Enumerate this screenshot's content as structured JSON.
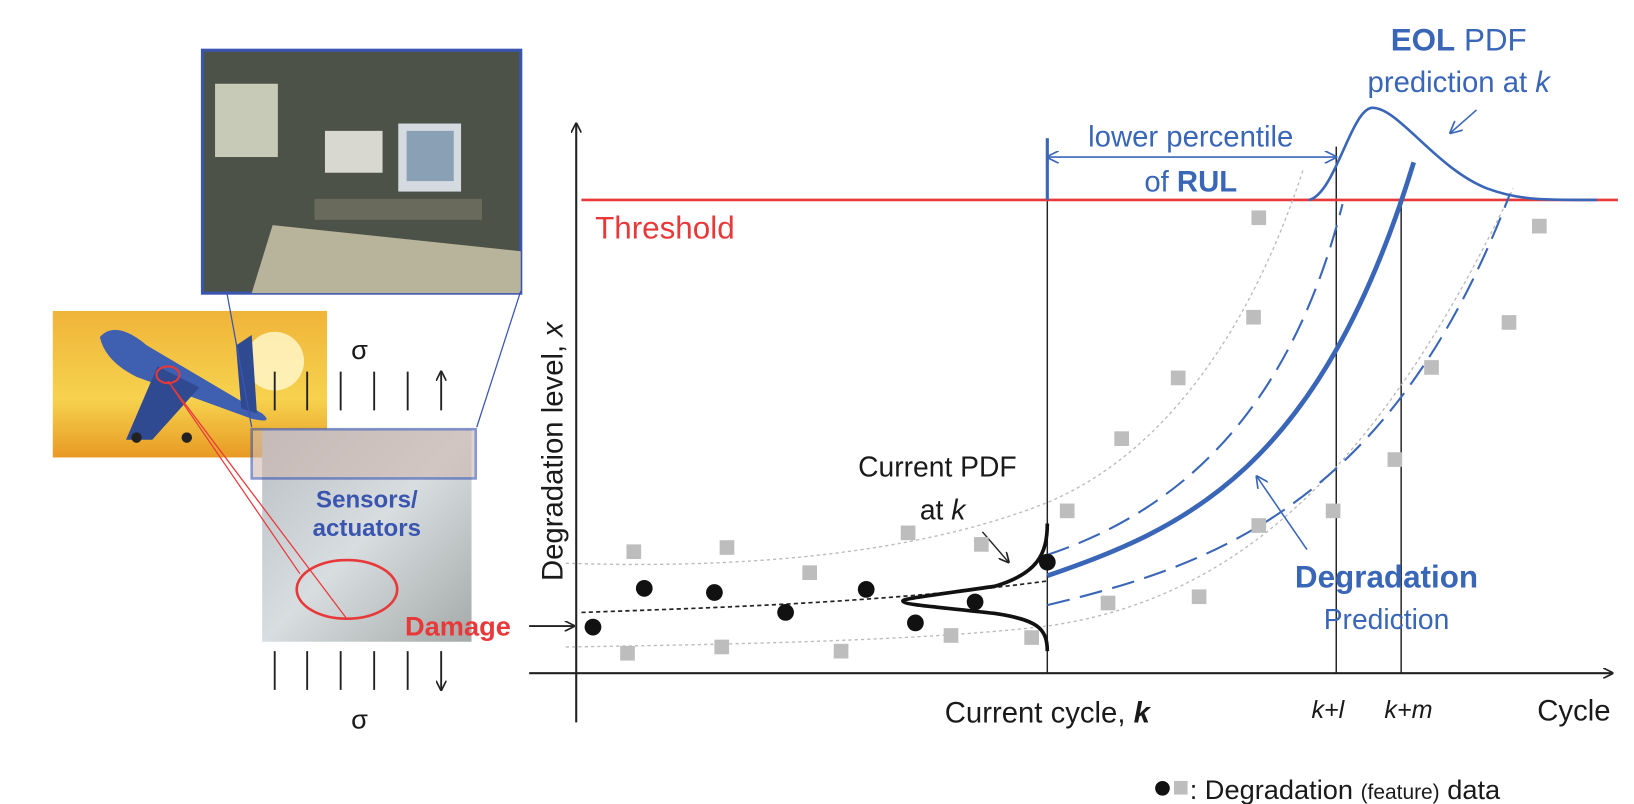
{
  "left": {
    "sigma_top": "σ",
    "sigma_bottom": "σ",
    "sensors": "Sensors/",
    "actuators": "actuators",
    "damage": "Damage"
  },
  "axes": {
    "y_label": "Degradation level, ",
    "y_label_var": "x",
    "x_label": "Cycle",
    "current_cycle": "Current cycle, ",
    "current_cycle_var": "k",
    "k_plus_l": "k+l",
    "k_plus_m": "k+m"
  },
  "threshold": "Threshold",
  "eol": {
    "bold": "EOL",
    "rest": " PDF",
    "line2": "prediction at ",
    "var": "k"
  },
  "rul": {
    "line1": "lower percentile",
    "line2_prefix": "of ",
    "line2_bold": "RUL"
  },
  "current_pdf": {
    "line1": "Current PDF",
    "line2": "at ",
    "var": "k"
  },
  "degradation": {
    "bold": "Degradation",
    "line2": "Prediction"
  },
  "legend": {
    "text": ": Degradation ",
    "small": "(feature)",
    "end": " data"
  }
}
